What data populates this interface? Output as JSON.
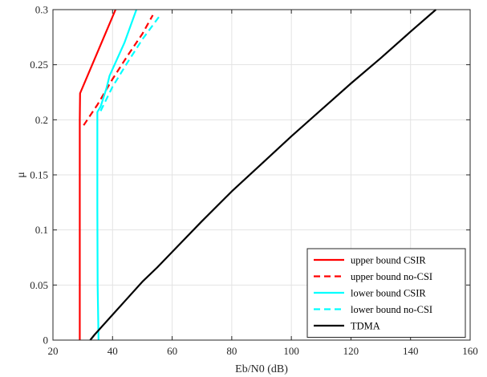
{
  "chart_data": {
    "type": "line",
    "xlabel": "Eb/N0 (dB)",
    "ylabel": "μ",
    "xlim": [
      20,
      160
    ],
    "ylim": [
      0,
      0.3
    ],
    "xticks": [
      20,
      40,
      60,
      80,
      100,
      120,
      140,
      160
    ],
    "yticks": [
      0,
      0.05,
      0.1,
      0.15,
      0.2,
      0.25,
      0.3
    ],
    "xtick_labels": [
      "20",
      "40",
      "60",
      "80",
      "100",
      "120",
      "140",
      "160"
    ],
    "ytick_labels": [
      "0",
      "0.05",
      "0.1",
      "0.15",
      "0.2",
      "0.25",
      "0.3"
    ],
    "grid": true,
    "legend_position": "bottom-right",
    "series": [
      {
        "name": "upper bound CSIR",
        "color": "#ff0000",
        "dash": "solid",
        "x": [
          29.0,
          29.0,
          29.0,
          29.1,
          41.0
        ],
        "y": [
          0.0,
          0.1,
          0.2,
          0.224,
          0.3
        ]
      },
      {
        "name": "upper bound no-CSI",
        "color": "#ff0000",
        "dash": "dashed",
        "x": [
          30.3,
          35.0,
          40.0,
          45.0,
          50.0,
          53.5
        ],
        "y": [
          0.195,
          0.214,
          0.237,
          0.258,
          0.278,
          0.295
        ]
      },
      {
        "name": "lower bound CSIR",
        "color": "#00ffff",
        "dash": "solid",
        "x": [
          35.3,
          35.0,
          34.9,
          34.9,
          36.0,
          38.0,
          39.0,
          44.0,
          48.0
        ],
        "y": [
          0.0,
          0.05,
          0.12,
          0.207,
          0.212,
          0.229,
          0.24,
          0.27,
          0.3
        ]
      },
      {
        "name": "lower bound no-CSI",
        "color": "#00ffff",
        "dash": "dashed",
        "x": [
          36.0,
          40.0,
          45.0,
          50.0,
          56.0
        ],
        "y": [
          0.208,
          0.23,
          0.252,
          0.273,
          0.295
        ]
      },
      {
        "name": "TDMA",
        "color": "#000000",
        "dash": "solid",
        "x": [
          32.5,
          34.0,
          36.0,
          40.0,
          45.0,
          50.0,
          55.0,
          60.0,
          70.0,
          80.0,
          90.0,
          100.0,
          110.0,
          120.0,
          130.0,
          140.0,
          148.5
        ],
        "y": [
          0.0,
          0.005,
          0.011,
          0.023,
          0.038,
          0.053,
          0.066,
          0.08,
          0.108,
          0.135,
          0.16,
          0.185,
          0.209,
          0.233,
          0.256,
          0.28,
          0.3
        ]
      }
    ]
  }
}
